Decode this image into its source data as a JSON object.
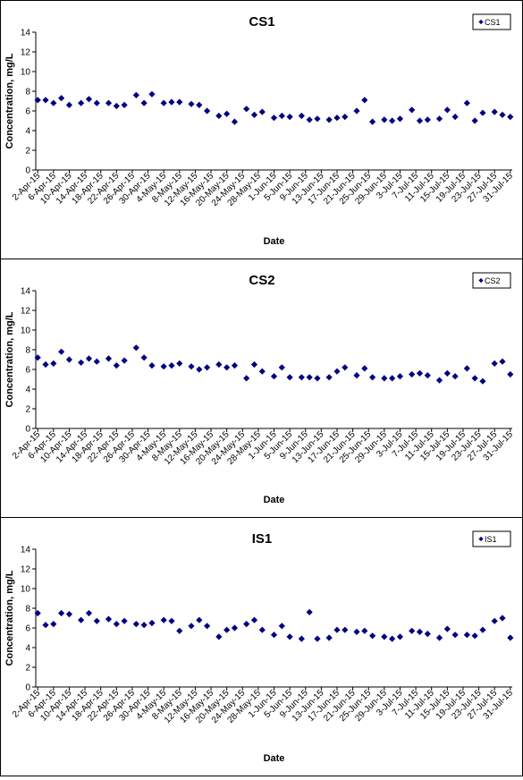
{
  "chart_data": [
    {
      "type": "scatter",
      "title": "CS1",
      "xlabel": "Date",
      "ylabel": "Concentration, mg/L",
      "ylim": [
        0,
        14
      ],
      "y_ticks": [
        0,
        2,
        4,
        6,
        8,
        10,
        12,
        14
      ],
      "x_tick_labels": [
        "2-Apr-15",
        "6-Apr-15",
        "10-Apr-15",
        "14-Apr-15",
        "18-Apr-15",
        "22-Apr-15",
        "26-Apr-15",
        "30-Apr-15",
        "4-May-15",
        "8-May-15",
        "12-May-15",
        "16-May-15",
        "20-May-15",
        "24-May-15",
        "28-May-15",
        "1-Jun-15",
        "5-Jun-15",
        "9-Jun-15",
        "13-Jun-15",
        "17-Jun-15",
        "21-Jun-15",
        "25-Jun-15",
        "29-Jun-15",
        "3-Jul-15",
        "7-Jul-15",
        "11-Jul-15",
        "15-Jul-15",
        "19-Jul-15",
        "23-Jul-15",
        "27-Jul-15",
        "31-Jul-15"
      ],
      "grid": false,
      "legend_position": "top-right",
      "series": [
        {
          "name": "CS1",
          "color": "#000080",
          "marker": "diamond",
          "x": [
            "2-Apr-15",
            "4-Apr-15",
            "6-Apr-15",
            "8-Apr-15",
            "10-Apr-15",
            "13-Apr-15",
            "15-Apr-15",
            "17-Apr-15",
            "20-Apr-15",
            "22-Apr-15",
            "24-Apr-15",
            "27-Apr-15",
            "29-Apr-15",
            "1-May-15",
            "4-May-15",
            "6-May-15",
            "8-May-15",
            "11-May-15",
            "13-May-15",
            "15-May-15",
            "18-May-15",
            "20-May-15",
            "22-May-15",
            "25-May-15",
            "27-May-15",
            "29-May-15",
            "1-Jun-15",
            "3-Jun-15",
            "5-Jun-15",
            "8-Jun-15",
            "10-Jun-15",
            "12-Jun-15",
            "15-Jun-15",
            "17-Jun-15",
            "19-Jun-15",
            "22-Jun-15",
            "24-Jun-15",
            "26-Jun-15",
            "29-Jun-15",
            "1-Jul-15",
            "3-Jul-15",
            "6-Jul-15",
            "8-Jul-15",
            "10-Jul-15",
            "13-Jul-15",
            "15-Jul-15",
            "17-Jul-15",
            "20-Jul-15",
            "22-Jul-15",
            "24-Jul-15",
            "27-Jul-15",
            "29-Jul-15",
            "31-Jul-15"
          ],
          "y": [
            7.1,
            7.1,
            6.8,
            7.3,
            6.6,
            6.8,
            7.2,
            6.8,
            6.8,
            6.5,
            6.6,
            7.6,
            6.8,
            7.7,
            6.8,
            6.9,
            6.9,
            6.7,
            6.6,
            6.0,
            5.5,
            5.7,
            4.9,
            6.2,
            5.6,
            5.9,
            5.3,
            5.5,
            5.4,
            5.5,
            5.1,
            5.2,
            5.1,
            5.3,
            5.4,
            6.0,
            7.1,
            4.9,
            5.1,
            5.0,
            5.2,
            6.1,
            5.0,
            5.1,
            5.2,
            6.1,
            5.4,
            6.8,
            5.0,
            5.8,
            5.9,
            5.6,
            5.4
          ]
        }
      ]
    },
    {
      "type": "scatter",
      "title": "CS2",
      "xlabel": "Date",
      "ylabel": "Concentration, mg/L",
      "ylim": [
        0,
        14
      ],
      "y_ticks": [
        0,
        2,
        4,
        6,
        8,
        10,
        12,
        14
      ],
      "x_tick_labels": [
        "2-Apr-15",
        "6-Apr-15",
        "10-Apr-15",
        "14-Apr-15",
        "18-Apr-15",
        "22-Apr-15",
        "26-Apr-15",
        "30-Apr-15",
        "4-May-15",
        "8-May-15",
        "12-May-15",
        "16-May-15",
        "20-May-15",
        "24-May-15",
        "28-May-15",
        "1-Jun-15",
        "5-Jun-15",
        "9-Jun-15",
        "13-Jun-15",
        "17-Jun-15",
        "21-Jun-15",
        "25-Jun-15",
        "29-Jun-15",
        "3-Jul-15",
        "7-Jul-15",
        "11-Jul-15",
        "15-Jul-15",
        "19-Jul-15",
        "23-Jul-15",
        "27-Jul-15",
        "31-Jul-15"
      ],
      "grid": false,
      "legend_position": "top-right",
      "series": [
        {
          "name": "CS2",
          "color": "#000080",
          "marker": "diamond",
          "x": [
            "2-Apr-15",
            "4-Apr-15",
            "6-Apr-15",
            "8-Apr-15",
            "10-Apr-15",
            "13-Apr-15",
            "15-Apr-15",
            "17-Apr-15",
            "20-Apr-15",
            "22-Apr-15",
            "24-Apr-15",
            "27-Apr-15",
            "29-Apr-15",
            "1-May-15",
            "4-May-15",
            "6-May-15",
            "8-May-15",
            "11-May-15",
            "13-May-15",
            "15-May-15",
            "18-May-15",
            "20-May-15",
            "22-May-15",
            "25-May-15",
            "27-May-15",
            "29-May-15",
            "1-Jun-15",
            "3-Jun-15",
            "5-Jun-15",
            "8-Jun-15",
            "10-Jun-15",
            "12-Jun-15",
            "15-Jun-15",
            "17-Jun-15",
            "19-Jun-15",
            "22-Jun-15",
            "24-Jun-15",
            "26-Jun-15",
            "29-Jun-15",
            "1-Jul-15",
            "3-Jul-15",
            "6-Jul-15",
            "8-Jul-15",
            "10-Jul-15",
            "13-Jul-15",
            "15-Jul-15",
            "17-Jul-15",
            "20-Jul-15",
            "22-Jul-15",
            "24-Jul-15",
            "27-Jul-15",
            "29-Jul-15",
            "31-Jul-15"
          ],
          "y": [
            7.2,
            6.5,
            6.6,
            7.8,
            7.0,
            6.7,
            7.1,
            6.8,
            7.1,
            6.4,
            6.9,
            8.2,
            7.2,
            6.4,
            6.3,
            6.4,
            6.6,
            6.3,
            6.0,
            6.2,
            6.5,
            6.2,
            6.4,
            5.1,
            6.5,
            5.8,
            5.3,
            6.2,
            5.2,
            5.2,
            5.2,
            5.1,
            5.2,
            5.8,
            6.2,
            5.4,
            6.1,
            5.2,
            5.1,
            5.1,
            5.3,
            5.5,
            5.6,
            5.4,
            4.9,
            5.6,
            5.3,
            6.1,
            5.1,
            4.8,
            6.6,
            6.8,
            5.5
          ]
        }
      ]
    },
    {
      "type": "scatter",
      "title": "IS1",
      "xlabel": "Date",
      "ylabel": "Concentration, mg/L",
      "ylim": [
        0,
        14
      ],
      "y_ticks": [
        0,
        2,
        4,
        6,
        8,
        10,
        12,
        14
      ],
      "x_tick_labels": [
        "2-Apr-15",
        "6-Apr-15",
        "10-Apr-15",
        "14-Apr-15",
        "18-Apr-15",
        "22-Apr-15",
        "26-Apr-15",
        "30-Apr-15",
        "4-May-15",
        "8-May-15",
        "12-May-15",
        "16-May-15",
        "20-May-15",
        "24-May-15",
        "28-May-15",
        "1-Jun-15",
        "5-Jun-15",
        "9-Jun-15",
        "13-Jun-15",
        "17-Jun-15",
        "21-Jun-15",
        "25-Jun-15",
        "29-Jun-15",
        "3-Jul-15",
        "7-Jul-15",
        "11-Jul-15",
        "15-Jul-15",
        "19-Jul-15",
        "23-Jul-15",
        "27-Jul-15",
        "31-Jul-15"
      ],
      "grid": false,
      "legend_position": "top-right",
      "series": [
        {
          "name": "IS1",
          "color": "#000080",
          "marker": "diamond",
          "x": [
            "2-Apr-15",
            "4-Apr-15",
            "6-Apr-15",
            "8-Apr-15",
            "10-Apr-15",
            "13-Apr-15",
            "15-Apr-15",
            "17-Apr-15",
            "20-Apr-15",
            "22-Apr-15",
            "24-Apr-15",
            "27-Apr-15",
            "29-Apr-15",
            "1-May-15",
            "4-May-15",
            "6-May-15",
            "8-May-15",
            "11-May-15",
            "13-May-15",
            "15-May-15",
            "18-May-15",
            "20-May-15",
            "22-May-15",
            "25-May-15",
            "27-May-15",
            "29-May-15",
            "1-Jun-15",
            "3-Jun-15",
            "5-Jun-15",
            "8-Jun-15",
            "10-Jun-15",
            "12-Jun-15",
            "15-Jun-15",
            "17-Jun-15",
            "19-Jun-15",
            "22-Jun-15",
            "24-Jun-15",
            "26-Jun-15",
            "29-Jun-15",
            "1-Jul-15",
            "3-Jul-15",
            "6-Jul-15",
            "8-Jul-15",
            "10-Jul-15",
            "13-Jul-15",
            "15-Jul-15",
            "17-Jul-15",
            "20-Jul-15",
            "22-Jul-15",
            "24-Jul-15",
            "27-Jul-15",
            "29-Jul-15",
            "31-Jul-15"
          ],
          "y": [
            7.5,
            6.3,
            6.4,
            7.5,
            7.4,
            6.8,
            7.5,
            6.7,
            6.9,
            6.4,
            6.7,
            6.4,
            6.3,
            6.5,
            6.8,
            6.7,
            5.7,
            6.2,
            6.8,
            6.2,
            5.1,
            5.8,
            6.0,
            6.4,
            6.8,
            5.8,
            5.3,
            6.2,
            5.1,
            4.9,
            7.6,
            4.9,
            5.0,
            5.8,
            5.8,
            5.6,
            5.7,
            5.2,
            5.1,
            4.9,
            5.1,
            5.7,
            5.6,
            5.4,
            5.0,
            5.9,
            5.3,
            5.3,
            5.2,
            5.8,
            6.7,
            7.0,
            5.0
          ]
        }
      ]
    }
  ]
}
